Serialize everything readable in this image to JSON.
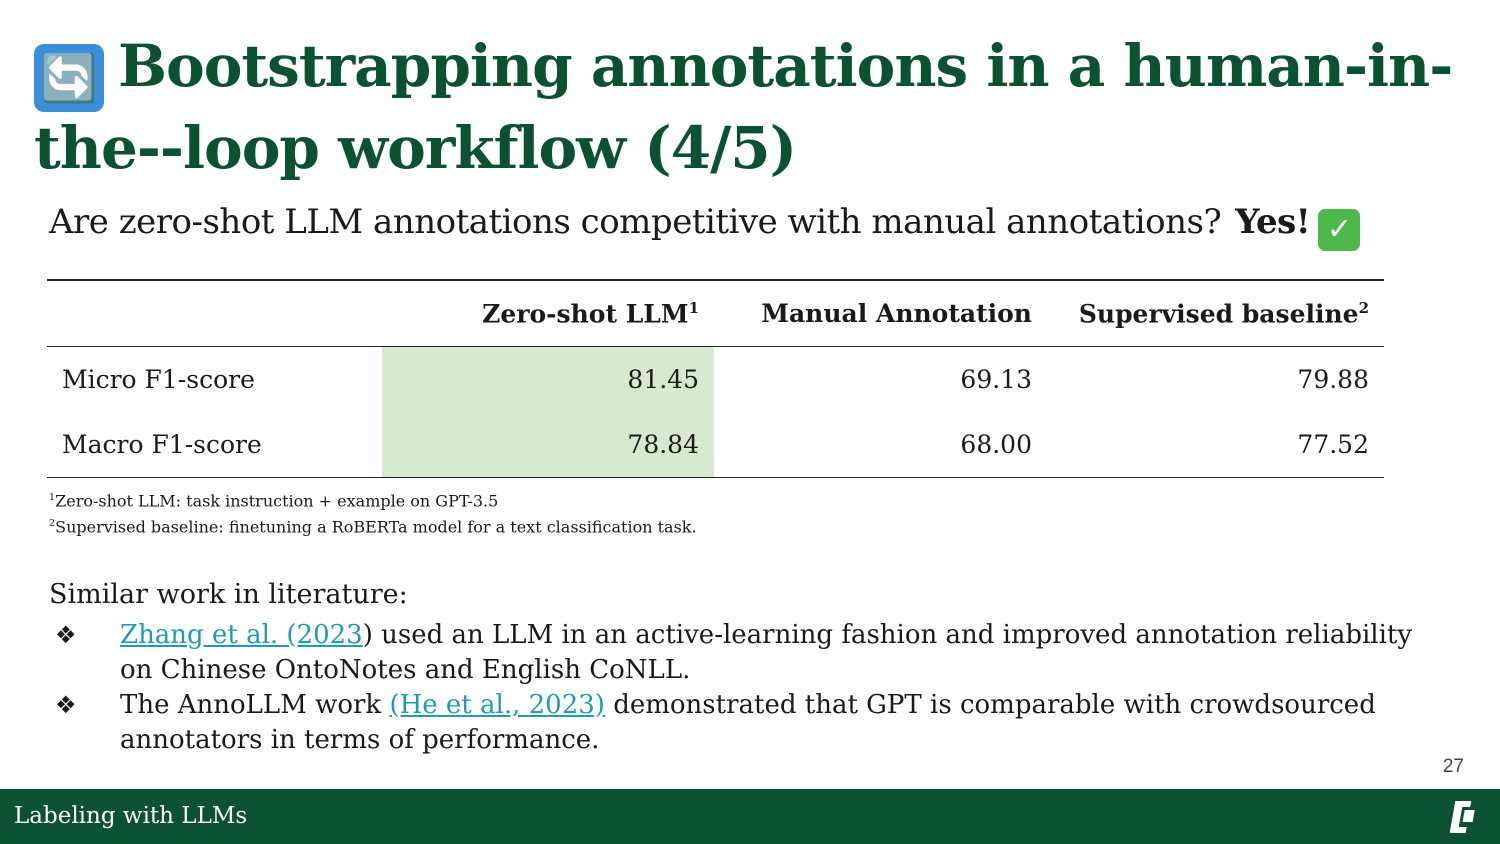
{
  "title": {
    "icon": "arrows-cycle-icon",
    "icon_glyph": "🔄",
    "text": "Bootstrapping annotations in a human-in-the--loop workflow (4/5)"
  },
  "subtitle": {
    "question": "Are zero-shot LLM annotations competitive with manual annotations?",
    "answer": "Yes!",
    "answer_icon": "check-mark-icon",
    "answer_icon_glyph": "✓"
  },
  "table": {
    "headers": [
      {
        "label": "",
        "sup": ""
      },
      {
        "label": "Zero-shot LLM",
        "sup": "1"
      },
      {
        "label": "Manual Annotation",
        "sup": ""
      },
      {
        "label": "Supervised baseline",
        "sup": "2"
      }
    ],
    "rows": [
      {
        "label": "Micro F1-score",
        "values": [
          "81.45",
          "69.13",
          "79.88"
        ]
      },
      {
        "label": "Macro F1-score",
        "values": [
          "78.84",
          "68.00",
          "77.52"
        ]
      }
    ],
    "highlight_color": "#d8e9d2"
  },
  "footnotes": [
    {
      "sup": "1",
      "text": "Zero-shot LLM: task instruction + example on GPT-3.5"
    },
    {
      "sup": "2",
      "text": "Supervised baseline: finetuning a RoBERTa model for a text classification task."
    }
  ],
  "literature": {
    "heading": "Similar work in literature:",
    "bullet_glyph": "❖",
    "items": [
      {
        "link": "Zhang et al. (2023",
        "text_after": ") used an LLM in an active-learning fashion and improved annotation reliability on Chinese OntoNotes and English CoNLL."
      },
      {
        "text_before": "The AnnoLLM work ",
        "link": "(He et al., 2023)",
        "text_after": " demonstrated that GPT is comparable with crowdsourced annotators in terms of performance."
      }
    ]
  },
  "page_number": "27",
  "footer": {
    "label": "Labeling with LLMs",
    "logo": "university-logo",
    "bg_color": "#0b5233"
  },
  "colors": {
    "title": "#0b5233",
    "link": "#1f9bb5"
  }
}
